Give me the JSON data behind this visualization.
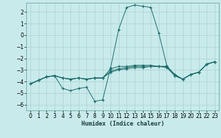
{
  "xlabel": "Humidex (Indice chaleur)",
  "background_color": "#c8eaea",
  "grid_color": "#b0d4d4",
  "line_color": "#1a6b6b",
  "xlim": [
    -0.5,
    23.5
  ],
  "ylim": [
    -6.5,
    2.8
  ],
  "xticks": [
    0,
    1,
    2,
    3,
    4,
    5,
    6,
    7,
    8,
    9,
    10,
    11,
    12,
    13,
    14,
    15,
    16,
    17,
    18,
    19,
    20,
    21,
    22,
    23
  ],
  "yticks": [
    -6,
    -5,
    -4,
    -3,
    -2,
    -1,
    0,
    1,
    2
  ],
  "lines": [
    {
      "x": [
        0,
        1,
        2,
        3,
        4,
        5,
        6,
        7,
        8,
        9,
        10,
        11,
        12,
        13,
        14,
        15,
        16,
        17,
        18,
        19,
        20,
        21,
        22,
        23
      ],
      "y": [
        -4.2,
        -3.9,
        -3.6,
        -3.5,
        -4.6,
        -4.8,
        -4.6,
        -4.5,
        -5.7,
        -5.6,
        -2.8,
        0.5,
        2.4,
        2.6,
        2.5,
        2.4,
        0.2,
        -2.6,
        -3.5,
        -3.8,
        -3.4,
        -3.2,
        -2.5,
        -2.3
      ]
    },
    {
      "x": [
        0,
        1,
        2,
        3,
        4,
        5,
        6,
        7,
        8,
        9,
        10,
        11,
        12,
        13,
        14,
        15,
        16,
        17,
        18,
        19,
        20,
        21,
        22,
        23
      ],
      "y": [
        -4.2,
        -3.9,
        -3.6,
        -3.5,
        -3.7,
        -3.8,
        -3.7,
        -3.8,
        -3.7,
        -3.7,
        -3.2,
        -3.0,
        -2.9,
        -2.8,
        -2.8,
        -2.7,
        -2.7,
        -2.8,
        -3.5,
        -3.8,
        -3.4,
        -3.2,
        -2.5,
        -2.3
      ]
    },
    {
      "x": [
        0,
        1,
        2,
        3,
        4,
        5,
        6,
        7,
        8,
        9,
        10,
        11,
        12,
        13,
        14,
        15,
        16,
        17,
        18,
        19,
        20,
        21,
        22,
        23
      ],
      "y": [
        -4.2,
        -3.9,
        -3.6,
        -3.5,
        -3.7,
        -3.8,
        -3.7,
        -3.8,
        -3.7,
        -3.7,
        -3.1,
        -2.9,
        -2.8,
        -2.7,
        -2.7,
        -2.7,
        -2.7,
        -2.7,
        -3.4,
        -3.8,
        -3.4,
        -3.2,
        -2.5,
        -2.3
      ]
    },
    {
      "x": [
        0,
        1,
        2,
        3,
        4,
        5,
        6,
        7,
        8,
        9,
        10,
        11,
        12,
        13,
        14,
        15,
        16,
        17,
        18,
        19,
        20,
        21,
        22,
        23
      ],
      "y": [
        -4.2,
        -3.9,
        -3.6,
        -3.5,
        -3.7,
        -3.8,
        -3.7,
        -3.8,
        -3.7,
        -3.7,
        -2.9,
        -2.7,
        -2.7,
        -2.6,
        -2.6,
        -2.6,
        -2.7,
        -2.7,
        -3.4,
        -3.8,
        -3.4,
        -3.2,
        -2.5,
        -2.3
      ]
    }
  ]
}
